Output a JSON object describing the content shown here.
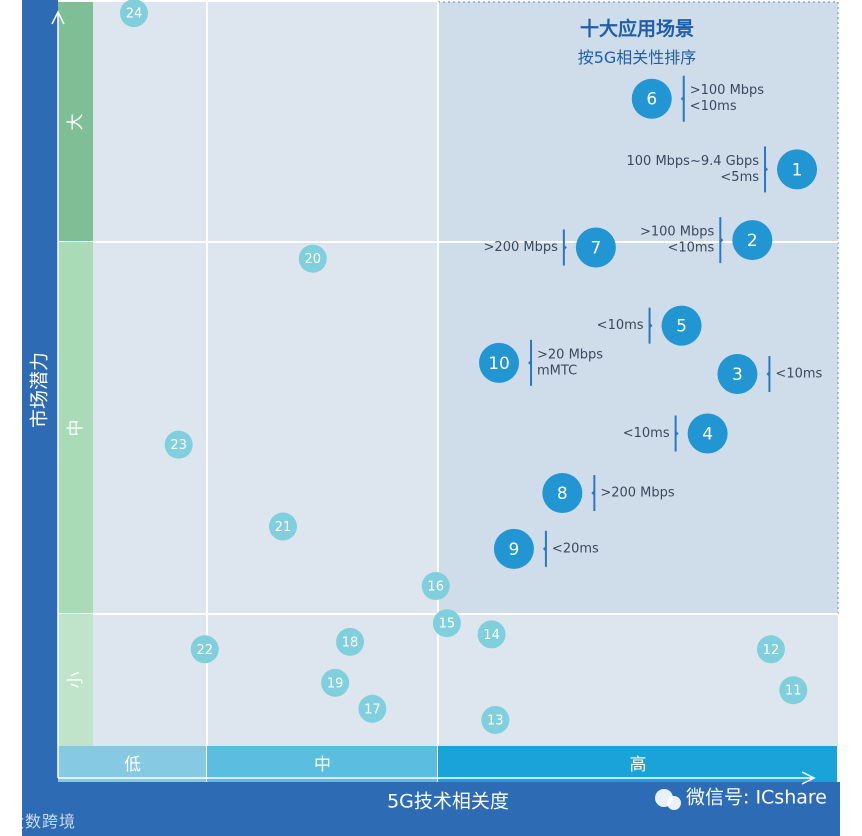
{
  "chart_data": {
    "type": "scatter",
    "title": "十大应用场景",
    "subtitle": "按5G相关性排序",
    "xlabel": "5G技术相关度",
    "ylabel": "市场潜力",
    "x_bands": [
      "低",
      "中",
      "高"
    ],
    "y_bands": [
      "大",
      "中",
      "小"
    ],
    "xlim": [
      0,
      10
    ],
    "ylim": [
      0,
      10
    ],
    "grid": false,
    "legend": "none",
    "colors": {
      "axis_bar": "#2e6bb5",
      "top_ten": "#2196d3",
      "others": "#7fcfdc",
      "band_low": "#86c9e3",
      "band_mid": "#5bbde0",
      "band_high": "#1aa3d9",
      "y_band_high": "#7ebf95",
      "y_band_mid": "#a9dbb7",
      "y_band_low": "#bfe4c9",
      "highlight_bg": "#cfdcea"
    },
    "points": [
      {
        "id": "1",
        "x": 9.45,
        "y": 7.75,
        "top": true,
        "note": [
          "100 Mbps~9.4 Gbps",
          "<5ms"
        ],
        "note_side": "left"
      },
      {
        "id": "2",
        "x": 8.85,
        "y": 6.8,
        "top": true,
        "note": [
          ">100 Mbps",
          "<10ms"
        ],
        "note_side": "left"
      },
      {
        "id": "3",
        "x": 8.65,
        "y": 5.0,
        "top": true,
        "note": [
          "<10ms"
        ],
        "note_side": "right"
      },
      {
        "id": "4",
        "x": 8.25,
        "y": 4.2,
        "top": true,
        "note": [
          "<10ms"
        ],
        "note_side": "left"
      },
      {
        "id": "5",
        "x": 7.9,
        "y": 5.65,
        "top": true,
        "note": [
          "<10ms"
        ],
        "note_side": "left"
      },
      {
        "id": "6",
        "x": 7.5,
        "y": 8.7,
        "top": true,
        "note": [
          ">100 Mbps",
          "<10ms"
        ],
        "note_side": "right"
      },
      {
        "id": "7",
        "x": 6.75,
        "y": 6.7,
        "top": true,
        "note": [
          ">200 Mbps"
        ],
        "note_side": "left"
      },
      {
        "id": "8",
        "x": 6.3,
        "y": 3.4,
        "top": true,
        "note": [
          ">200 Mbps"
        ],
        "note_side": "right"
      },
      {
        "id": "9",
        "x": 5.65,
        "y": 2.65,
        "top": true,
        "note": [
          "<20ms"
        ],
        "note_side": "right"
      },
      {
        "id": "10",
        "x": 5.45,
        "y": 5.15,
        "top": true,
        "note": [
          ">20 Mbps",
          "mMTC"
        ],
        "note_side": "right"
      },
      {
        "id": "11",
        "x": 9.4,
        "y": 0.75,
        "top": false
      },
      {
        "id": "12",
        "x": 9.1,
        "y": 1.3,
        "top": false
      },
      {
        "id": "13",
        "x": 5.4,
        "y": 0.35,
        "top": false
      },
      {
        "id": "14",
        "x": 5.35,
        "y": 1.5,
        "top": false
      },
      {
        "id": "15",
        "x": 4.75,
        "y": 1.65,
        "top": false
      },
      {
        "id": "16",
        "x": 4.6,
        "y": 2.15,
        "top": false
      },
      {
        "id": "17",
        "x": 3.75,
        "y": 0.5,
        "top": false
      },
      {
        "id": "18",
        "x": 3.45,
        "y": 1.4,
        "top": false
      },
      {
        "id": "19",
        "x": 3.25,
        "y": 0.85,
        "top": false
      },
      {
        "id": "20",
        "x": 2.95,
        "y": 6.55,
        "top": false
      },
      {
        "id": "21",
        "x": 2.55,
        "y": 2.95,
        "top": false
      },
      {
        "id": "22",
        "x": 1.5,
        "y": 1.3,
        "top": false
      },
      {
        "id": "23",
        "x": 1.15,
        "y": 4.05,
        "top": false
      },
      {
        "id": "24",
        "x": 0.55,
        "y": 9.85,
        "top": false
      }
    ]
  },
  "branding": {
    "watermark_left": "大数跨境",
    "watermark_right": "微信号: ICshare"
  }
}
